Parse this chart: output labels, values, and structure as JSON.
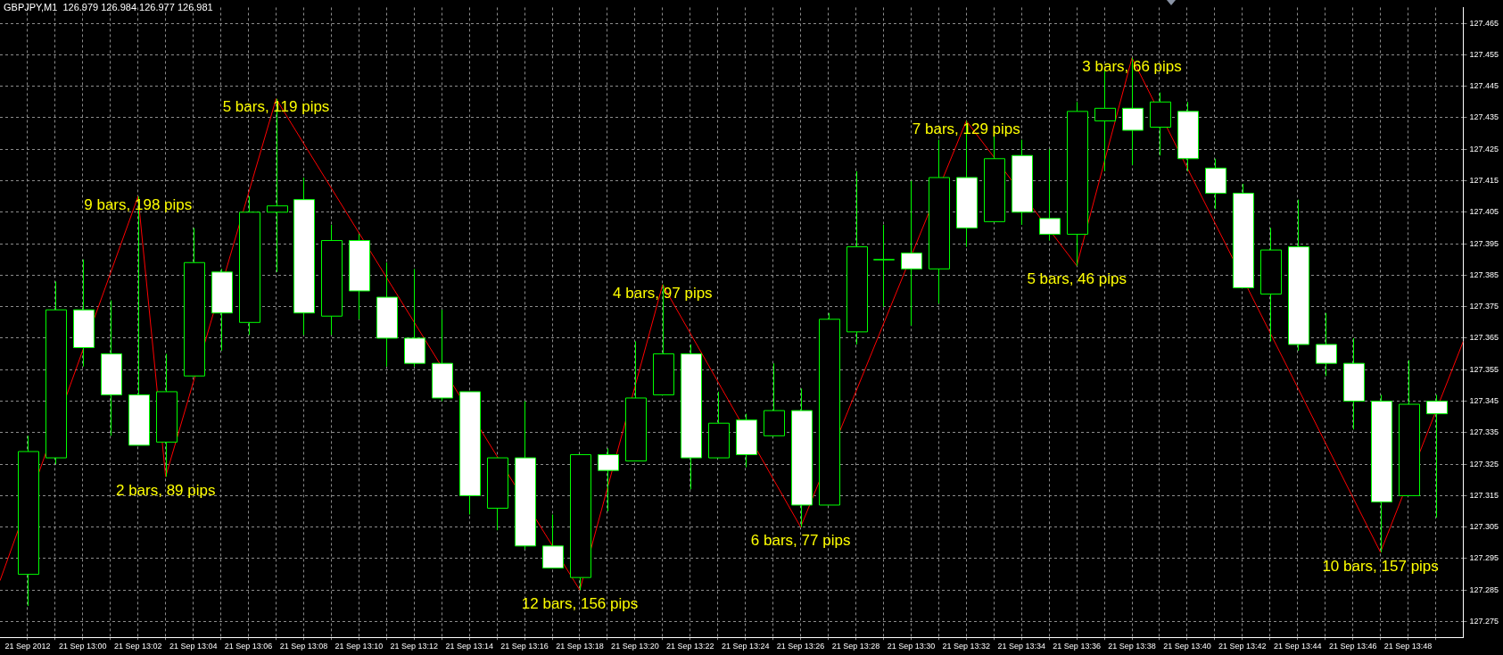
{
  "chart_data": {
    "type": "candlestick",
    "title": "GBPJPY,M1  126.979 126.984 126.977 126.981",
    "x": [
      "2012-09-21T12:58",
      "2012-09-21T12:59",
      "2012-09-21T13:00",
      "2012-09-21T13:01",
      "2012-09-21T13:02",
      "2012-09-21T13:03",
      "2012-09-21T13:04",
      "2012-09-21T13:05",
      "2012-09-21T13:06",
      "2012-09-21T13:07",
      "2012-09-21T13:08",
      "2012-09-21T13:09",
      "2012-09-21T13:10",
      "2012-09-21T13:11",
      "2012-09-21T13:12",
      "2012-09-21T13:13",
      "2012-09-21T13:14",
      "2012-09-21T13:15",
      "2012-09-21T13:16",
      "2012-09-21T13:17",
      "2012-09-21T13:18",
      "2012-09-21T13:19",
      "2012-09-21T13:20",
      "2012-09-21T13:21",
      "2012-09-21T13:22",
      "2012-09-21T13:23",
      "2012-09-21T13:24",
      "2012-09-21T13:25",
      "2012-09-21T13:26",
      "2012-09-21T13:27",
      "2012-09-21T13:28",
      "2012-09-21T13:29",
      "2012-09-21T13:30",
      "2012-09-21T13:31",
      "2012-09-21T13:32",
      "2012-09-21T13:33",
      "2012-09-21T13:34",
      "2012-09-21T13:35",
      "2012-09-21T13:36",
      "2012-09-21T13:37",
      "2012-09-21T13:38",
      "2012-09-21T13:39",
      "2012-09-21T13:40",
      "2012-09-21T13:41",
      "2012-09-21T13:42",
      "2012-09-21T13:43",
      "2012-09-21T13:44",
      "2012-09-21T13:45",
      "2012-09-21T13:46",
      "2012-09-21T13:47",
      "2012-09-21T13:48",
      "2012-09-21T13:49"
    ],
    "ohlc": [
      [
        127.29,
        127.334,
        127.28,
        127.329
      ],
      [
        127.327,
        127.383,
        127.325,
        127.374
      ],
      [
        127.374,
        127.39,
        127.356,
        127.362
      ],
      [
        127.36,
        127.377,
        127.334,
        127.347
      ],
      [
        127.347,
        127.41,
        127.331,
        127.331
      ],
      [
        127.332,
        127.36,
        127.321,
        127.348
      ],
      [
        127.353,
        127.4,
        127.353,
        127.389
      ],
      [
        127.386,
        127.387,
        127.361,
        127.373
      ],
      [
        127.37,
        127.41,
        127.366,
        127.405
      ],
      [
        127.405,
        127.441,
        127.386,
        127.407
      ],
      [
        127.409,
        127.416,
        127.366,
        127.373
      ],
      [
        127.372,
        127.401,
        127.366,
        127.396
      ],
      [
        127.396,
        127.398,
        127.371,
        127.38
      ],
      [
        127.378,
        127.389,
        127.356,
        127.365
      ],
      [
        127.365,
        127.387,
        127.356,
        127.357
      ],
      [
        127.357,
        127.374,
        127.345,
        127.346
      ],
      [
        127.348,
        127.348,
        127.309,
        127.315
      ],
      [
        127.311,
        127.327,
        127.304,
        127.327
      ],
      [
        127.327,
        127.345,
        127.298,
        127.299
      ],
      [
        127.299,
        127.309,
        127.292,
        127.292
      ],
      [
        127.289,
        127.328,
        127.285,
        127.328
      ],
      [
        127.328,
        127.33,
        127.31,
        127.323
      ],
      [
        127.326,
        127.364,
        127.326,
        127.346
      ],
      [
        127.347,
        127.382,
        127.347,
        127.36
      ],
      [
        127.36,
        127.363,
        127.317,
        127.327
      ],
      [
        127.327,
        127.348,
        127.327,
        127.338
      ],
      [
        127.339,
        127.341,
        127.324,
        127.328
      ],
      [
        127.334,
        127.357,
        127.334,
        127.342
      ],
      [
        127.342,
        127.349,
        127.305,
        127.312
      ],
      [
        127.312,
        127.373,
        127.312,
        127.371
      ],
      [
        127.367,
        127.418,
        127.363,
        127.394
      ],
      [
        127.39,
        127.401,
        127.375,
        127.39
      ],
      [
        127.392,
        127.415,
        127.369,
        127.387
      ],
      [
        127.387,
        127.428,
        127.376,
        127.416
      ],
      [
        127.416,
        127.434,
        127.394,
        127.4
      ],
      [
        127.402,
        127.43,
        127.402,
        127.422
      ],
      [
        127.423,
        127.428,
        127.401,
        127.405
      ],
      [
        127.403,
        127.425,
        127.396,
        127.398
      ],
      [
        127.398,
        127.44,
        127.388,
        127.437
      ],
      [
        127.434,
        127.45,
        127.418,
        127.438
      ],
      [
        127.438,
        127.454,
        127.42,
        127.431
      ],
      [
        127.432,
        127.443,
        127.423,
        127.44
      ],
      [
        127.437,
        127.44,
        127.418,
        127.422
      ],
      [
        127.419,
        127.422,
        127.406,
        127.411
      ],
      [
        127.411,
        127.414,
        127.381,
        127.381
      ],
      [
        127.379,
        127.4,
        127.364,
        127.393
      ],
      [
        127.394,
        127.409,
        127.361,
        127.363
      ],
      [
        127.363,
        127.373,
        127.353,
        127.357
      ],
      [
        127.357,
        127.365,
        127.336,
        127.345
      ],
      [
        127.345,
        127.347,
        127.297,
        127.313
      ],
      [
        127.315,
        127.358,
        127.315,
        127.344
      ],
      [
        127.345,
        127.347,
        127.308,
        127.341
      ]
    ],
    "color": "#00ff00",
    "colors": [
      "#000000",
      "#000000",
      "#ffffff",
      "#ffffff",
      "#ffffff",
      "#000000",
      "#000000",
      "#ffffff",
      "#000000",
      "#000000",
      "#ffffff",
      "#000000",
      "#ffffff",
      "#ffffff",
      "#ffffff",
      "#ffffff",
      "#ffffff",
      "#000000",
      "#ffffff",
      "#ffffff",
      "#000000",
      "#ffffff",
      "#000000",
      "#000000",
      "#ffffff",
      "#000000",
      "#ffffff",
      "#000000",
      "#ffffff",
      "#000000",
      "#000000",
      "#000000",
      "#ffffff",
      "#000000",
      "#ffffff",
      "#000000",
      "#ffffff",
      "#ffffff",
      "#000000",
      "#000000",
      "#ffffff",
      "#000000",
      "#ffffff",
      "#ffffff",
      "#ffffff",
      "#000000",
      "#ffffff",
      "#ffffff",
      "#ffffff",
      "#ffffff",
      "#000000",
      "#ffffff"
    ],
    "series": [
      {
        "type": "line",
        "color": "#ff0000",
        "x": [
          "2012-09-21T12:57",
          "2012-09-21T13:02",
          "2012-09-21T13:03",
          "2012-09-21T13:07",
          "2012-09-21T13:18",
          "2012-09-21T13:21",
          "2012-09-21T13:26",
          "2012-09-21T13:32",
          "2012-09-21T13:36",
          "2012-09-21T13:38",
          "2012-09-21T13:47",
          "2012-09-21T13:50"
        ],
        "values": [
          127.288,
          127.41,
          127.321,
          127.441,
          127.285,
          127.382,
          127.305,
          127.434,
          127.388,
          127.454,
          127.297,
          127.364
        ]
      }
    ],
    "xlim": [
      "2012-09-21T12:57",
      "2012-09-21T13:50"
    ],
    "xticks": [
      {
        "value": "2012-09-21T12:58",
        "label": "21 Sep 2012"
      },
      {
        "value": "2012-09-21T12:59",
        "label": null
      },
      {
        "value": "2012-09-21T13:00",
        "label": "21 Sep 13:00"
      },
      {
        "value": "2012-09-21T13:01",
        "label": null
      },
      {
        "value": "2012-09-21T13:02",
        "label": "21 Sep 13:02"
      },
      {
        "value": "2012-09-21T13:03",
        "label": null
      },
      {
        "value": "2012-09-21T13:04",
        "label": "21 Sep 13:04"
      },
      {
        "value": "2012-09-21T13:05",
        "label": null
      },
      {
        "value": "2012-09-21T13:06",
        "label": "21 Sep 13:06"
      },
      {
        "value": "2012-09-21T13:07",
        "label": null
      },
      {
        "value": "2012-09-21T13:08",
        "label": "21 Sep 13:08"
      },
      {
        "value": "2012-09-21T13:09",
        "label": null
      },
      {
        "value": "2012-09-21T13:10",
        "label": "21 Sep 13:10"
      },
      {
        "value": "2012-09-21T13:11",
        "label": null
      },
      {
        "value": "2012-09-21T13:12",
        "label": "21 Sep 13:12"
      },
      {
        "value": "2012-09-21T13:13",
        "label": null
      },
      {
        "value": "2012-09-21T13:14",
        "label": "21 Sep 13:14"
      },
      {
        "value": "2012-09-21T13:15",
        "label": null
      },
      {
        "value": "2012-09-21T13:16",
        "label": "21 Sep 13:16"
      },
      {
        "value": "2012-09-21T13:17",
        "label": null
      },
      {
        "value": "2012-09-21T13:18",
        "label": "21 Sep 13:18"
      },
      {
        "value": "2012-09-21T13:19",
        "label": null
      },
      {
        "value": "2012-09-21T13:20",
        "label": "21 Sep 13:20"
      },
      {
        "value": "2012-09-21T13:21",
        "label": null
      },
      {
        "value": "2012-09-21T13:22",
        "label": "21 Sep 13:22"
      },
      {
        "value": "2012-09-21T13:23",
        "label": null
      },
      {
        "value": "2012-09-21T13:24",
        "label": "21 Sep 13:24"
      },
      {
        "value": "2012-09-21T13:25",
        "label": null
      },
      {
        "value": "2012-09-21T13:26",
        "label": "21 Sep 13:26"
      },
      {
        "value": "2012-09-21T13:27",
        "label": null
      },
      {
        "value": "2012-09-21T13:28",
        "label": "21 Sep 13:28"
      },
      {
        "value": "2012-09-21T13:29",
        "label": null
      },
      {
        "value": "2012-09-21T13:30",
        "label": "21 Sep 13:30"
      },
      {
        "value": "2012-09-21T13:31",
        "label": null
      },
      {
        "value": "2012-09-21T13:32",
        "label": "21 Sep 13:32"
      },
      {
        "value": "2012-09-21T13:33",
        "label": null
      },
      {
        "value": "2012-09-21T13:34",
        "label": "21 Sep 13:34"
      },
      {
        "value": "2012-09-21T13:35",
        "label": null
      },
      {
        "value": "2012-09-21T13:36",
        "label": "21 Sep 13:36"
      },
      {
        "value": "2012-09-21T13:37",
        "label": null
      },
      {
        "value": "2012-09-21T13:38",
        "label": "21 Sep 13:38"
      },
      {
        "value": "2012-09-21T13:39",
        "label": null
      },
      {
        "value": "2012-09-21T13:40",
        "label": "21 Sep 13:40"
      },
      {
        "value": "2012-09-21T13:41",
        "label": null
      },
      {
        "value": "2012-09-21T13:42",
        "label": "21 Sep 13:42"
      },
      {
        "value": "2012-09-21T13:43",
        "label": null
      },
      {
        "value": "2012-09-21T13:44",
        "label": "21 Sep 13:44"
      },
      {
        "value": "2012-09-21T13:45",
        "label": null
      },
      {
        "value": "2012-09-21T13:46",
        "label": "21 Sep 13:46"
      },
      {
        "value": "2012-09-21T13:47",
        "label": null
      },
      {
        "value": "2012-09-21T13:48",
        "label": "21 Sep 13:48"
      },
      {
        "value": "2012-09-21T13:49",
        "label": null
      }
    ],
    "ylim": [
      127.27,
      127.47
    ],
    "yticks": [
      127.275,
      127.285,
      127.295,
      127.305,
      127.315,
      127.325,
      127.335,
      127.345,
      127.355,
      127.365,
      127.375,
      127.385,
      127.395,
      127.405,
      127.415,
      127.425,
      127.435,
      127.445,
      127.455,
      127.465
    ],
    "grid": true,
    "legend": false,
    "marker": "none",
    "line_style": "solid",
    "annotations": [
      {
        "text": "9 bars, 198 pips",
        "x": "2012-09-21T13:02",
        "y": 127.41
      },
      {
        "text": "2 bars, 89 pips",
        "x": "2012-09-21T13:03",
        "y": 127.321
      },
      {
        "text": "5 bars, 119 pips",
        "x": "2012-09-21T13:07",
        "y": 127.441
      },
      {
        "text": "12 bars, 156 pips",
        "x": "2012-09-21T13:18",
        "y": 127.285
      },
      {
        "text": "4 bars, 97 pips",
        "x": "2012-09-21T13:21",
        "y": 127.382
      },
      {
        "text": "6 bars, 77 pips",
        "x": "2012-09-21T13:26",
        "y": 127.305
      },
      {
        "text": "7 bars, 129 pips",
        "x": "2012-09-21T13:32",
        "y": 127.434
      },
      {
        "text": "5 bars, 46 pips",
        "x": "2012-09-21T13:36",
        "y": 127.388
      },
      {
        "text": "3 bars, 66 pips",
        "x": "2012-09-21T13:38",
        "y": 127.454
      },
      {
        "text": "10 bars, 157 pips",
        "x": "2012-09-21T13:47",
        "y": 127.297
      }
    ]
  }
}
